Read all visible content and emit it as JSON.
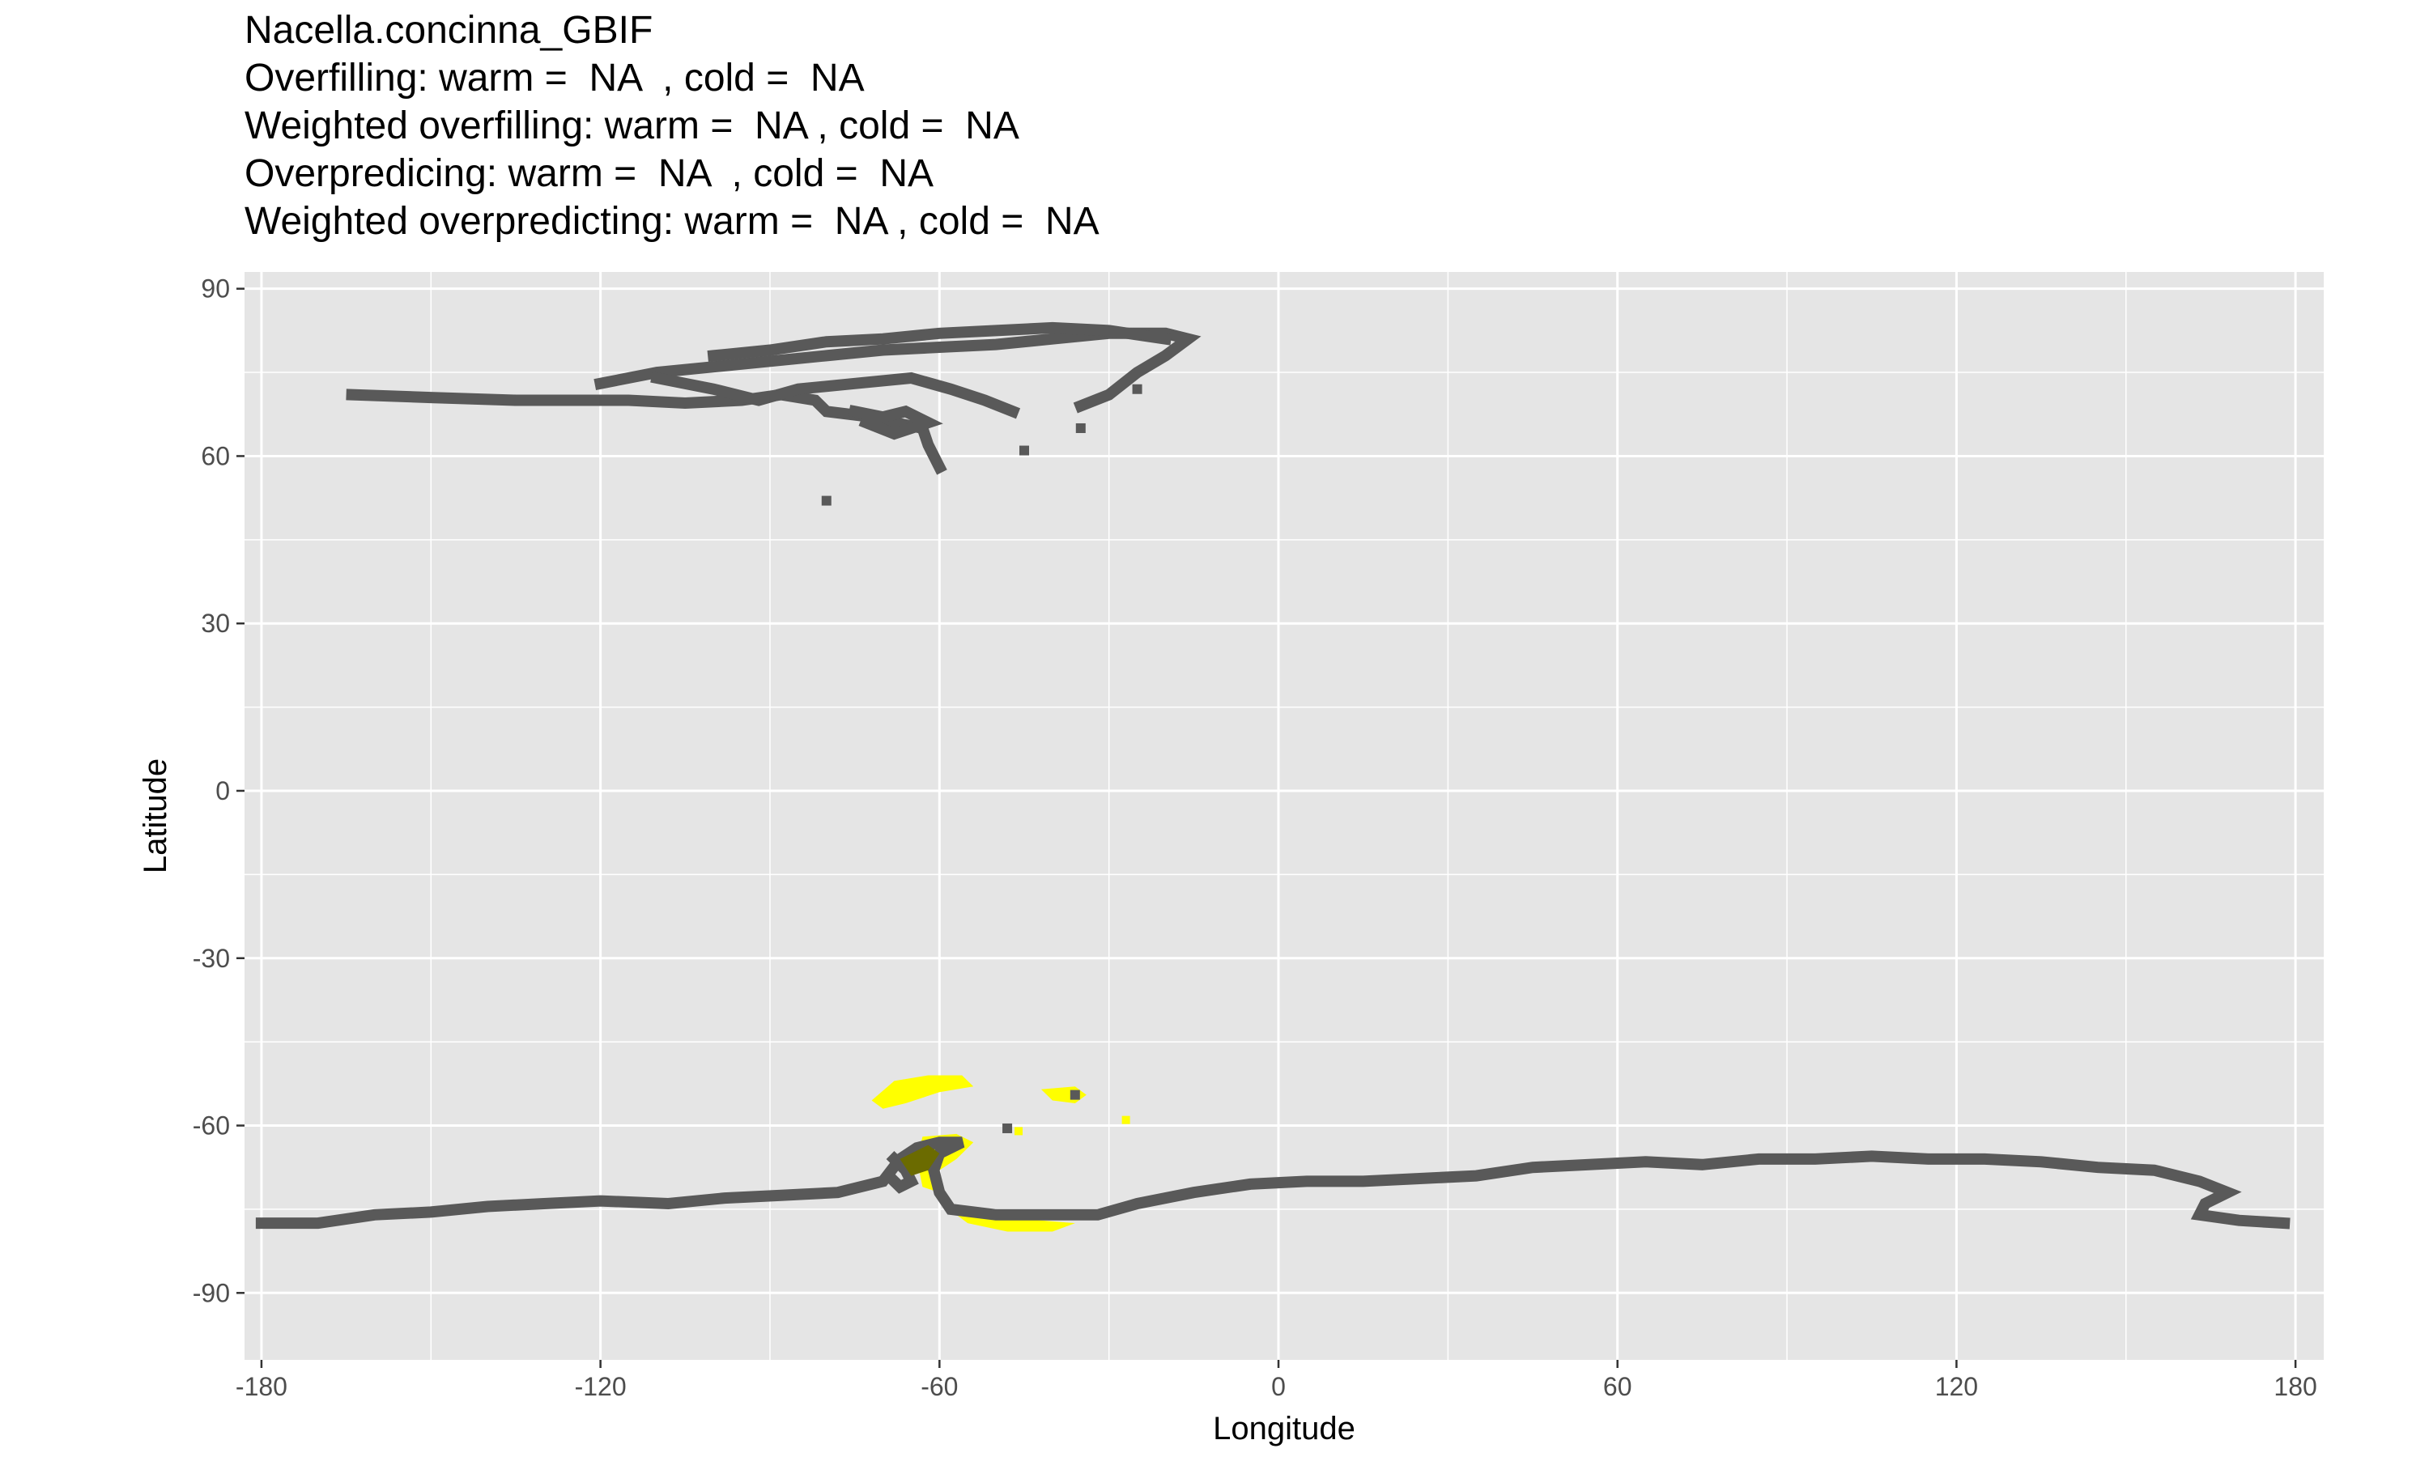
{
  "chart_data": {
    "type": "map-raster",
    "title": "Nacella.concinna_GBIF",
    "subtitle_lines": [
      "Overfilling: warm =  NA  , cold =  NA",
      "Weighted overfilling: warm =  NA , cold =  NA",
      "Overpredicing: warm =  NA  , cold =  NA",
      "Weighted overpredicting: warm =  NA , cold =  NA"
    ],
    "xlabel": "Longitude",
    "ylabel": "Latitude",
    "xlim": [
      -183,
      185
    ],
    "ylim": [
      -102,
      93
    ],
    "x_ticks": [
      -180,
      -120,
      -60,
      0,
      60,
      120,
      180
    ],
    "y_ticks": [
      90,
      60,
      30,
      0,
      -30,
      -60,
      -90
    ],
    "x_tick_labels": [
      "-180",
      "-120",
      "-60",
      "0",
      "60",
      "120",
      "180"
    ],
    "y_tick_labels": [
      "90",
      "60",
      "30",
      "0",
      "-30",
      "-60",
      "-90"
    ],
    "grid": true,
    "colors": {
      "panel_background": "#e5e5e5",
      "grid_line": "#ffffff",
      "range_cells": "#595959",
      "predicted_cells": "#ffff00",
      "overlap_cells": "#6b6b00"
    },
    "layers": {
      "range_paths": [
        [
          [
            -164,
            71
          ],
          [
            -150,
            70.5
          ],
          [
            -135,
            70
          ],
          [
            -125,
            70
          ],
          [
            -115,
            70
          ],
          [
            -105,
            69.5
          ],
          [
            -95,
            70
          ],
          [
            -88,
            71
          ],
          [
            -82,
            70
          ],
          [
            -80,
            68
          ],
          [
            -72,
            67
          ],
          [
            -68,
            66
          ],
          [
            -63,
            65
          ],
          [
            -62,
            62
          ],
          [
            -60,
            58
          ]
        ],
        [
          [
            -120,
            73
          ],
          [
            -110,
            75
          ],
          [
            -100,
            76
          ],
          [
            -90,
            77
          ],
          [
            -80,
            78
          ],
          [
            -70,
            79
          ],
          [
            -60,
            79.5
          ],
          [
            -50,
            80
          ],
          [
            -40,
            81
          ],
          [
            -30,
            82
          ],
          [
            -20,
            82
          ],
          [
            -16,
            81
          ],
          [
            -20,
            78
          ],
          [
            -25,
            75
          ],
          [
            -30,
            71
          ],
          [
            -35,
            69
          ]
        ],
        [
          [
            -110,
            74
          ],
          [
            -100,
            72
          ],
          [
            -92,
            70
          ],
          [
            -85,
            72
          ],
          [
            -75,
            73
          ],
          [
            -65,
            74
          ],
          [
            -58,
            72
          ],
          [
            -52,
            70
          ],
          [
            -47,
            68
          ]
        ],
        [
          [
            -100,
            78
          ],
          [
            -90,
            79
          ],
          [
            -80,
            80.5
          ],
          [
            -70,
            81
          ],
          [
            -60,
            82
          ],
          [
            -50,
            82.5
          ],
          [
            -40,
            83
          ],
          [
            -30,
            82.5
          ],
          [
            -20,
            81
          ]
        ],
        [
          [
            -75,
            68
          ],
          [
            -70,
            67
          ],
          [
            -66,
            68
          ],
          [
            -62,
            66
          ],
          [
            -68,
            64
          ],
          [
            -73,
            66
          ]
        ],
        [
          [
            -180,
            -77.5
          ],
          [
            -170,
            -77.5
          ],
          [
            -160,
            -76
          ],
          [
            -150,
            -75.5
          ],
          [
            -140,
            -74.5
          ],
          [
            -130,
            -74
          ],
          [
            -120,
            -73.5
          ],
          [
            -108,
            -74
          ],
          [
            -98,
            -73
          ],
          [
            -88,
            -72.5
          ],
          [
            -78,
            -72
          ],
          [
            -70,
            -70
          ],
          [
            -67,
            -66
          ],
          [
            -64,
            -64
          ],
          [
            -60,
            -63
          ],
          [
            -56,
            -63
          ],
          [
            -60,
            -65
          ],
          [
            -61,
            -68
          ],
          [
            -60,
            -72
          ],
          [
            -58,
            -75
          ],
          [
            -50,
            -76
          ],
          [
            -40,
            -76
          ],
          [
            -32,
            -76
          ],
          [
            -25,
            -74
          ],
          [
            -15,
            -72
          ],
          [
            -5,
            -70.5
          ],
          [
            5,
            -70
          ],
          [
            15,
            -70
          ],
          [
            25,
            -69.5
          ],
          [
            35,
            -69
          ],
          [
            45,
            -67.5
          ],
          [
            55,
            -67
          ],
          [
            65,
            -66.5
          ],
          [
            75,
            -67
          ],
          [
            85,
            -66
          ],
          [
            95,
            -66
          ],
          [
            105,
            -65.5
          ],
          [
            115,
            -66
          ],
          [
            125,
            -66
          ],
          [
            135,
            -66.5
          ],
          [
            145,
            -67.5
          ],
          [
            155,
            -68
          ],
          [
            163,
            -70
          ],
          [
            168,
            -72
          ],
          [
            164,
            -74
          ],
          [
            163,
            -76
          ],
          [
            170,
            -77
          ],
          [
            178,
            -77.5
          ]
        ],
        [
          [
            -68,
            -66
          ],
          [
            -66,
            -68
          ],
          [
            -65,
            -70
          ],
          [
            -67,
            -71
          ],
          [
            -69,
            -69
          ]
        ]
      ],
      "range_points": [
        [
          -48,
          -60.5
        ],
        [
          -36,
          -54.5
        ],
        [
          -80,
          52
        ],
        [
          -45,
          61
        ],
        [
          -35,
          65
        ],
        [
          -25,
          72
        ]
      ],
      "predicted_areas": [
        [
          [
            -72,
            -55.5
          ],
          [
            -68,
            -52
          ],
          [
            -62,
            -51
          ],
          [
            -56,
            -51
          ],
          [
            -54,
            -53
          ],
          [
            -60,
            -54
          ],
          [
            -66,
            -56
          ],
          [
            -70,
            -57
          ]
        ],
        [
          [
            -42,
            -53.5
          ],
          [
            -36,
            -53
          ],
          [
            -34,
            -54.5
          ],
          [
            -36,
            -56
          ],
          [
            -40,
            -55.5
          ]
        ],
        [
          [
            -63,
            -62
          ],
          [
            -57,
            -61.5
          ],
          [
            -54,
            -63
          ],
          [
            -57,
            -66
          ],
          [
            -60,
            -68
          ],
          [
            -60,
            -72
          ],
          [
            -63,
            -71
          ],
          [
            -64,
            -66
          ]
        ],
        [
          [
            -57,
            -76
          ],
          [
            -50,
            -76.5
          ],
          [
            -42,
            -77
          ],
          [
            -36,
            -77.5
          ],
          [
            -40,
            -79
          ],
          [
            -48,
            -79
          ],
          [
            -55,
            -77.5
          ]
        ]
      ],
      "predicted_points": [
        [
          -27,
          -59
        ],
        [
          -46,
          -61
        ]
      ]
    }
  }
}
